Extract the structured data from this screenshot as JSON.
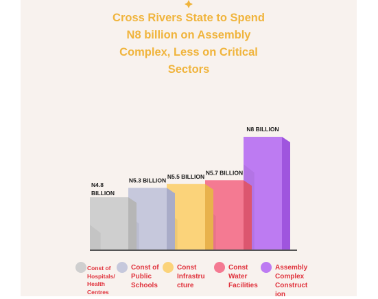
{
  "title_lines": [
    "Cross Rivers State to Spend",
    "N8 billion on Assembly",
    "Complex, Less on Critical",
    "Sectors"
  ],
  "chart_data": {
    "type": "bar",
    "title": "Cross Rivers State to Spend N8 billion on Assembly Complex, Less on Critical Sectors",
    "categories": [
      "Const of Hospitals/ Health Centres",
      "Const of Public Schools",
      "Const Infrastructure",
      "Const Water Facilities",
      "Assembly Complex Construction"
    ],
    "values": [
      4.8,
      5.3,
      5.5,
      5.7,
      8.0
    ],
    "unit": "billion Naira",
    "data_labels": [
      "N4.8 BILLION",
      "N5.3 BILLION",
      "N5.5 BILLION",
      "N5.7 BILLION",
      "N8 BILLION"
    ],
    "colors": [
      "#cfcfcf",
      "#c6c8dc",
      "#fbd37a",
      "#f47a92",
      "#bd7bf2"
    ],
    "side_colors": [
      "#b6b6b6",
      "#a9acc8",
      "#e8b24c",
      "#dc566f",
      "#9f55de"
    ],
    "legend": {
      "placement": "bottom",
      "items": [
        {
          "lines": [
            "Const of",
            "Hospitals/",
            "Health",
            "Centres"
          ],
          "color": "#cfcfcf"
        },
        {
          "lines": [
            "Const of",
            "Public",
            "Schools"
          ],
          "color": "#c6c8dc"
        },
        {
          "lines": [
            "Const",
            "Infrastru",
            "cture"
          ],
          "color": "#fbd37a"
        },
        {
          "lines": [
            "Const",
            "Water",
            "Facilities"
          ],
          "color": "#f47a92"
        },
        {
          "lines": [
            "Assembly",
            "Complex",
            "Construct",
            "ion"
          ],
          "color": "#bd7bf2"
        }
      ]
    }
  }
}
